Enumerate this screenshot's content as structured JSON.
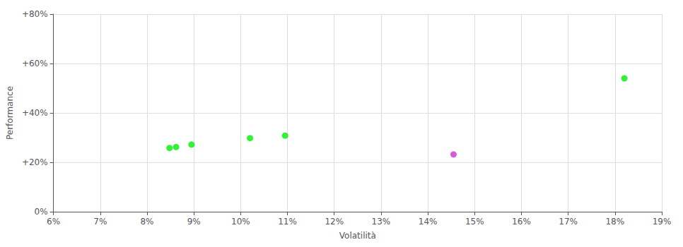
{
  "chart_data": {
    "type": "scatter",
    "xlabel": "Volatilità",
    "ylabel": "Performance",
    "xlim": [
      0.06,
      0.19
    ],
    "ylim": [
      0.0,
      0.8
    ],
    "xticks": [
      {
        "value": 0.06,
        "label": "6%"
      },
      {
        "value": 0.07,
        "label": "7%"
      },
      {
        "value": 0.08,
        "label": "8%"
      },
      {
        "value": 0.09,
        "label": "9%"
      },
      {
        "value": 0.1,
        "label": "10%"
      },
      {
        "value": 0.11,
        "label": "11%"
      },
      {
        "value": 0.12,
        "label": "12%"
      },
      {
        "value": 0.13,
        "label": "13%"
      },
      {
        "value": 0.14,
        "label": "14%"
      },
      {
        "value": 0.15,
        "label": "15%"
      },
      {
        "value": 0.16,
        "label": "16%"
      },
      {
        "value": 0.17,
        "label": "17%"
      },
      {
        "value": 0.18,
        "label": "18%"
      },
      {
        "value": 0.19,
        "label": "19%"
      }
    ],
    "yticks": [
      {
        "value": 0.0,
        "label": "0%"
      },
      {
        "value": 0.2,
        "label": "+20%"
      },
      {
        "value": 0.4,
        "label": "+40%"
      },
      {
        "value": 0.6,
        "label": "+60%"
      },
      {
        "value": 0.8,
        "label": "+80%"
      }
    ],
    "grid": true,
    "series": [
      {
        "color": "#00ee00",
        "x": [
          0.0848,
          0.0862,
          0.0895,
          0.102,
          0.1095,
          0.182
        ],
        "values": [
          0.258,
          0.262,
          0.272,
          0.298,
          0.308,
          0.54
        ]
      },
      {
        "color": "#cc33cc",
        "x": [
          0.1455
        ],
        "values": [
          0.232
        ]
      }
    ]
  }
}
